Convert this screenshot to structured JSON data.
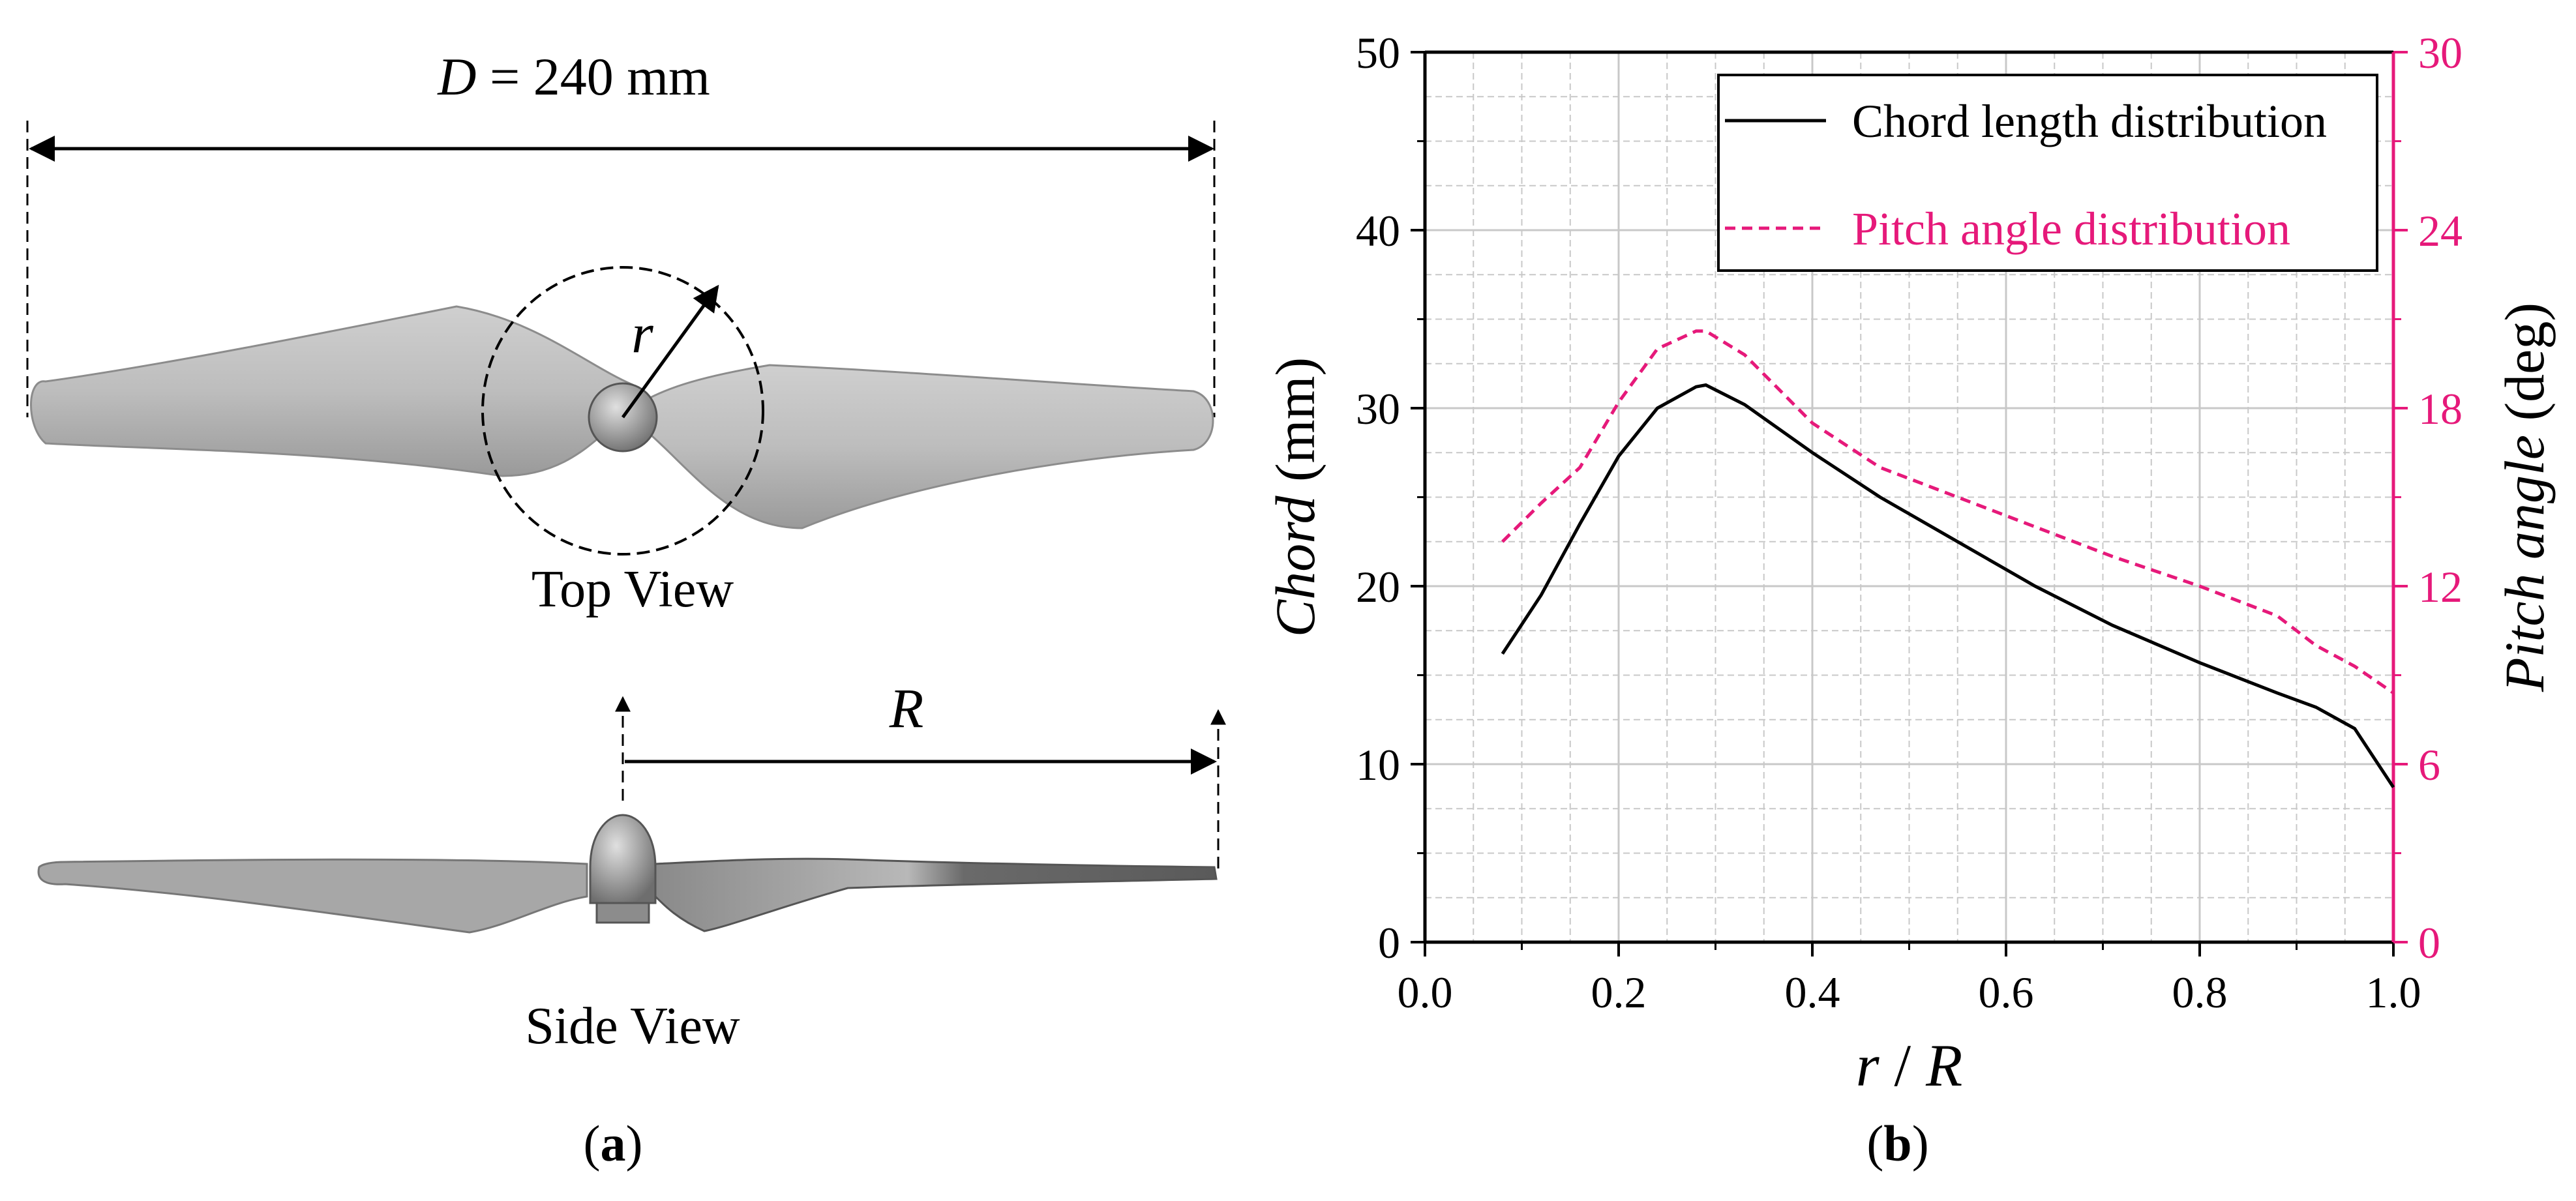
{
  "panel_a": {
    "caption": "a",
    "diameter_var": "D",
    "diameter_value": " = 240 mm",
    "radius_label": "r",
    "R_label": "R",
    "top_view_label": "Top View",
    "side_view_label": "Side View"
  },
  "panel_b": {
    "caption": "b"
  },
  "colors": {
    "chord": "#000000",
    "pitch": "#e6197a",
    "grid": "#c8c8c8",
    "blade": "#b4b4b4"
  },
  "chart_data": {
    "type": "line",
    "xlabel_var1": "r",
    "xlabel_sep": " / ",
    "xlabel_var2": "R",
    "ylabel_var": "Chord",
    "ylabel_unit": " (mm)",
    "y2label_var": "Pitch angle",
    "y2label_unit": " (deg)",
    "xlim": [
      0.0,
      1.0
    ],
    "ylim": [
      0,
      50
    ],
    "y2lim": [
      0,
      30
    ],
    "xticks": [
      "0.0",
      "0.2",
      "0.4",
      "0.6",
      "0.8",
      "1.0"
    ],
    "yticks": [
      "0",
      "10",
      "20",
      "30",
      "40",
      "50"
    ],
    "y2ticks": [
      "0",
      "6",
      "12",
      "18",
      "24",
      "30"
    ],
    "grid": true,
    "legend_position": "top-right",
    "series": [
      {
        "name": "Chord length distribution",
        "axis": "left",
        "style": "solid",
        "x": [
          0.08,
          0.12,
          0.16,
          0.2,
          0.24,
          0.28,
          0.29,
          0.33,
          0.4,
          0.47,
          0.55,
          0.63,
          0.71,
          0.8,
          0.88,
          0.92,
          0.96,
          1.0
        ],
        "y": [
          16.2,
          19.5,
          23.5,
          27.3,
          30.0,
          31.2,
          31.3,
          30.2,
          27.5,
          25.0,
          22.5,
          20.0,
          17.8,
          15.7,
          14.0,
          13.2,
          12.0,
          8.7
        ]
      },
      {
        "name": "Pitch angle distribution",
        "axis": "right",
        "style": "dashed",
        "x": [
          0.08,
          0.12,
          0.16,
          0.2,
          0.24,
          0.28,
          0.29,
          0.33,
          0.4,
          0.47,
          0.55,
          0.63,
          0.71,
          0.8,
          0.88,
          0.92,
          0.96,
          1.0
        ],
        "y": [
          13.5,
          14.8,
          16.0,
          18.2,
          20.0,
          20.6,
          20.6,
          19.8,
          17.5,
          16.0,
          15.0,
          14.0,
          13.0,
          12.0,
          11.0,
          10.0,
          9.3,
          8.4
        ]
      }
    ]
  }
}
